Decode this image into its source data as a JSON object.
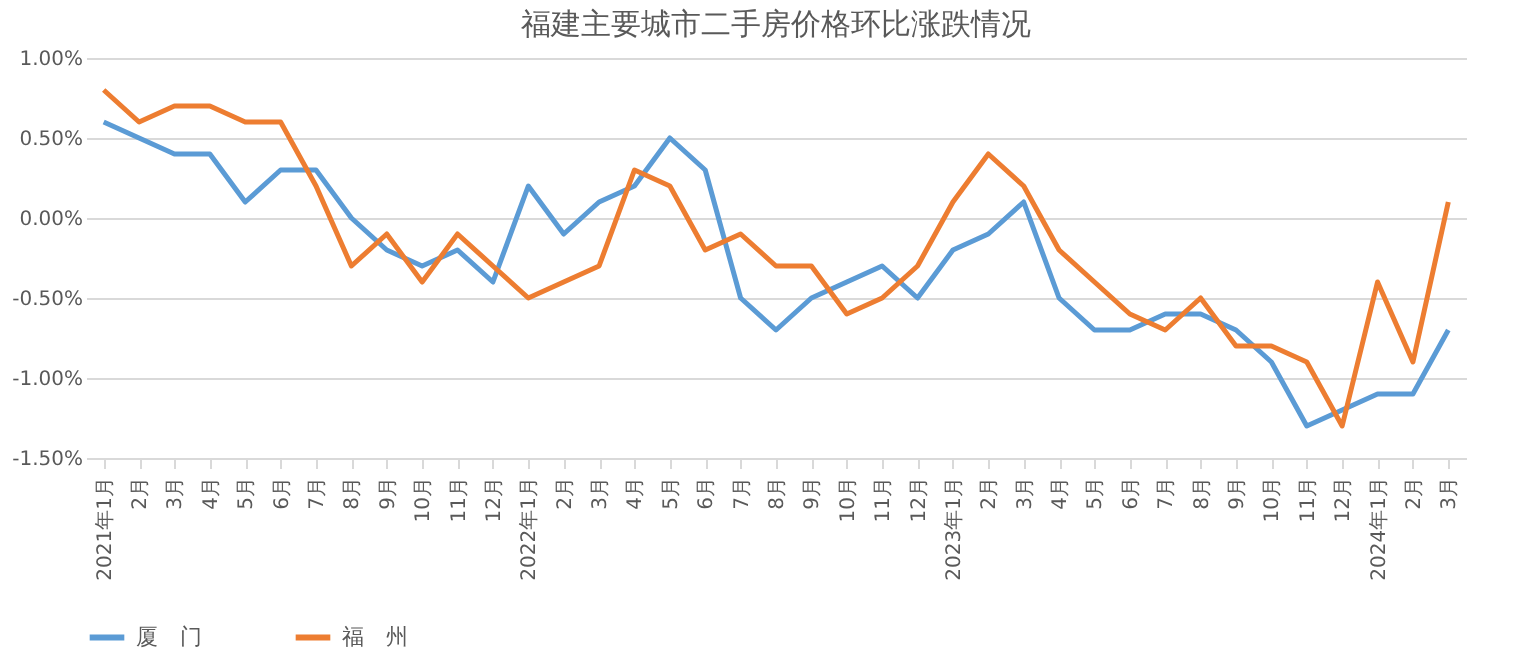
{
  "chart_data": {
    "type": "line",
    "title": "福建主要城市二手房价格环比涨跌情况",
    "categories": [
      "2021年1月",
      "2月",
      "3月",
      "4月",
      "5月",
      "6月",
      "7月",
      "8月",
      "9月",
      "10月",
      "11月",
      "12月",
      "2022年1月",
      "2月",
      "3月",
      "4月",
      "5月",
      "6月",
      "7月",
      "8月",
      "9月",
      "10月",
      "11月",
      "12月",
      "2023年1月",
      "2月",
      "3月",
      "4月",
      "5月",
      "6月",
      "7月",
      "8月",
      "9月",
      "10月",
      "11月",
      "12月",
      "2024年1月",
      "2月",
      "3月"
    ],
    "series": [
      {
        "name": "厦　门",
        "color": "#5b9bd5",
        "values": [
          0.6,
          0.5,
          0.4,
          0.4,
          0.1,
          0.3,
          0.3,
          0.0,
          -0.2,
          -0.3,
          -0.2,
          -0.4,
          0.2,
          -0.1,
          0.1,
          0.2,
          0.5,
          0.3,
          -0.5,
          -0.7,
          -0.5,
          -0.4,
          -0.3,
          -0.5,
          -0.2,
          -0.1,
          0.1,
          -0.5,
          -0.7,
          -0.7,
          -0.6,
          -0.6,
          -0.7,
          -0.9,
          -1.3,
          -1.2,
          -1.1,
          -1.1,
          -0.7
        ]
      },
      {
        "name": "福　州",
        "color": "#ed7d31",
        "values": [
          0.8,
          0.6,
          0.7,
          0.7,
          0.6,
          0.6,
          0.2,
          -0.3,
          -0.1,
          -0.4,
          -0.1,
          -0.3,
          -0.5,
          -0.4,
          -0.3,
          0.3,
          0.2,
          -0.2,
          -0.1,
          -0.3,
          -0.3,
          -0.6,
          -0.5,
          -0.3,
          0.1,
          0.4,
          0.2,
          -0.2,
          -0.4,
          -0.6,
          -0.7,
          -0.5,
          -0.8,
          -0.8,
          -0.9,
          -1.3,
          -0.4,
          -0.9,
          0.1
        ]
      }
    ],
    "ylim": [
      -1.5,
      1.0
    ],
    "yticks": [
      {
        "value": -1.5,
        "label": "-1.50%"
      },
      {
        "value": -1.0,
        "label": "-1.00%"
      },
      {
        "value": -0.5,
        "label": "-0.50%"
      },
      {
        "value": 0.0,
        "label": "0.00%"
      },
      {
        "value": 0.5,
        "label": "0.50%"
      },
      {
        "value": 1.0,
        "label": "1.00%"
      }
    ],
    "grid": "y",
    "legend": "bottom",
    "line_style": "solid",
    "marker": "none"
  }
}
